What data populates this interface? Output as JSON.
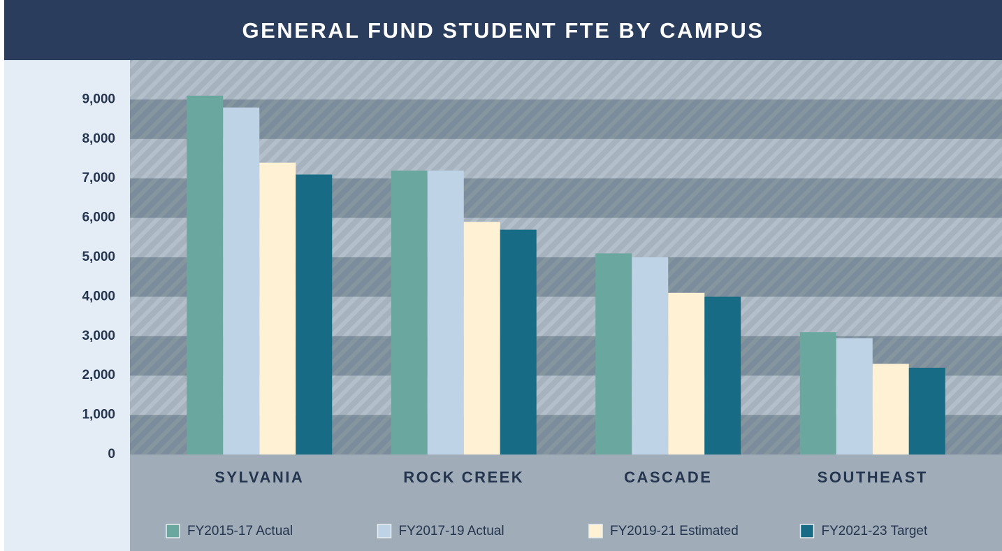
{
  "chart_data": {
    "type": "bar",
    "title": "GENERAL FUND STUDENT FTE BY CAMPUS",
    "categories": [
      "SYLVANIA",
      "ROCK CREEK",
      "CASCADE",
      "SOUTHEAST"
    ],
    "series": [
      {
        "name": "FY2015-17 Actual",
        "color": "#6aa89f",
        "values": [
          9100,
          7200,
          5100,
          3100
        ]
      },
      {
        "name": "FY2017-19 Actual",
        "color": "#bfd3e6",
        "values": [
          8800,
          7200,
          5000,
          2950
        ]
      },
      {
        "name": "FY2019-21 Estimated",
        "color": "#fef1d4",
        "values": [
          7400,
          5900,
          4100,
          2300
        ]
      },
      {
        "name": "FY2021-23 Target",
        "color": "#176b84",
        "values": [
          7100,
          5700,
          4000,
          2200
        ]
      }
    ],
    "ylim": [
      0,
      10000
    ],
    "yticks": [
      0,
      {
        "value": 1000,
        "label": "1,000"
      },
      {
        "value": 2000,
        "label": "2,000"
      },
      {
        "value": 3000,
        "label": "3,000"
      },
      {
        "value": 4000,
        "label": "4,000"
      },
      {
        "value": 5000,
        "label": "5,000"
      },
      {
        "value": 6000,
        "label": "6,000"
      },
      {
        "value": 7000,
        "label": "7,000"
      },
      {
        "value": 8000,
        "label": "8,000"
      },
      {
        "value": 9000,
        "label": "9,000"
      }
    ],
    "grid": true,
    "legend": "bottom"
  }
}
